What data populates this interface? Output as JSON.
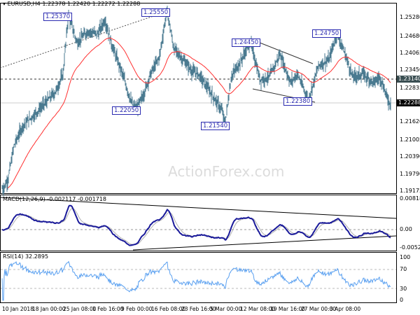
{
  "header": {
    "symbol": "EURUSD,H4",
    "ohlc": "1.22378 1.22420 1.22272 1.22288"
  },
  "watermark": "ActionForex.com",
  "colors": {
    "candles": "#4a7a90",
    "ma": "#ff3030",
    "macd": "#1a1a9a",
    "signal": "#b0b0b0",
    "rsi": "#5aa0f0",
    "label": "#2b2bb0"
  },
  "chart_data": [
    {
      "type": "line",
      "name": "EURUSD,H4 price",
      "ylim": [
        1.19175,
        1.2528
      ],
      "y_ticks": [
        "1.25280",
        "1.24680",
        "1.24065",
        "1.23450",
        "1.22835",
        "1.21620",
        "1.21005",
        "1.20390",
        "1.19790",
        "1.19175"
      ],
      "highlight_levels": {
        "dashed": "1.23140",
        "current": "1.22288"
      },
      "x_ticks": [
        "10 Jan 2018",
        "18 Jan 00:00",
        "25 Jan 08:00",
        "1 Feb 16:00",
        "9 Feb 00:00",
        "16 Feb 08:00",
        "23 Feb 16:00",
        "5 Mar 00:00",
        "12 Mar 08:00",
        "19 Mar 16:00",
        "27 Mar 00:00",
        "3 Apr 08:00"
      ],
      "x_tick_dates": [
        "2018-01-10T00:00",
        "2018-01-18T00:00",
        "2018-01-25T08:00",
        "2018-02-01T16:00",
        "2018-02-09T00:00",
        "2018-02-16T08:00",
        "2018-02-23T16:00",
        "2018-03-05T00:00",
        "2018-03-12T08:00",
        "2018-03-19T16:00",
        "2018-03-27T00:00",
        "2018-04-03T08:00"
      ],
      "swing_points": [
        [
          "2018-01-10T00:00",
          1.193
        ],
        [
          "2018-01-11T04:00",
          1.196
        ],
        [
          "2018-01-12T20:00",
          1.208
        ],
        [
          "2018-01-15T04:00",
          1.215
        ],
        [
          "2018-01-18T08:00",
          1.219
        ],
        [
          "2018-01-20T20:00",
          1.223
        ],
        [
          "2018-01-23T08:00",
          1.227
        ],
        [
          "2018-01-25T00:00",
          1.233
        ],
        [
          "2018-01-26T08:00",
          1.2537
        ],
        [
          "2018-01-28T12:00",
          1.244
        ],
        [
          "2018-01-31T04:00",
          1.248
        ],
        [
          "2018-02-02T16:00",
          1.247
        ],
        [
          "2018-02-04T12:00",
          1.252
        ],
        [
          "2018-02-06T08:00",
          1.243
        ],
        [
          "2018-02-09T00:00",
          1.233
        ],
        [
          "2018-02-11T04:00",
          1.223
        ],
        [
          "2018-02-12T08:00",
          1.2205
        ],
        [
          "2018-02-14T04:00",
          1.226
        ],
        [
          "2018-02-15T20:00",
          1.233
        ],
        [
          "2018-02-18T00:00",
          1.239
        ],
        [
          "2018-02-19T20:00",
          1.2555
        ],
        [
          "2018-02-21T12:00",
          1.242
        ],
        [
          "2018-02-23T20:00",
          1.238
        ],
        [
          "2018-02-26T16:00",
          1.234
        ],
        [
          "2018-02-28T20:00",
          1.233
        ],
        [
          "2018-03-05T12:00",
          1.225
        ],
        [
          "2018-03-07T16:00",
          1.22
        ],
        [
          "2018-03-08T08:00",
          1.2154
        ],
        [
          "2018-03-09T20:00",
          1.232
        ],
        [
          "2018-03-12T08:00",
          1.238
        ],
        [
          "2018-03-14T12:00",
          1.2445
        ],
        [
          "2018-03-16T20:00",
          1.231
        ],
        [
          "2018-03-19T04:00",
          1.232
        ],
        [
          "2018-03-21T16:00",
          1.24
        ],
        [
          "2018-03-24T04:00",
          1.23
        ],
        [
          "2018-03-25T20:00",
          1.233
        ],
        [
          "2018-03-28T12:00",
          1.2238
        ],
        [
          "2018-03-31T04:00",
          1.236
        ],
        [
          "2018-04-02T20:00",
          1.238
        ],
        [
          "2018-04-04T20:00",
          1.2475
        ],
        [
          "2018-04-07T04:00",
          1.239
        ],
        [
          "2018-04-08T20:00",
          1.232
        ],
        [
          "2018-04-11T12:00",
          1.233
        ],
        [
          "2018-04-14T04:00",
          1.23
        ],
        [
          "2018-04-15T20:00",
          1.232
        ],
        [
          "2018-04-18T04:00",
          1.2229
        ]
      ],
      "level_labels": [
        "1.25370",
        "1.25550",
        "1.22050",
        "1.21540",
        "1.24450",
        "1.22380",
        "1.24750"
      ]
    },
    {
      "type": "line",
      "name": "MACD",
      "title": "MACD(12,26,9) -0.002117 -0.001718",
      "ylim": [
        -0.005223,
        0.008182
      ],
      "y_ticks": [
        "0.008182",
        "0.00",
        "-0.005223"
      ]
    },
    {
      "type": "line",
      "name": "RSI",
      "title": "RSI(14) 32.2895",
      "ylim": [
        0,
        100
      ],
      "y_ticks": [
        "100",
        "70",
        "30",
        "0"
      ]
    }
  ]
}
